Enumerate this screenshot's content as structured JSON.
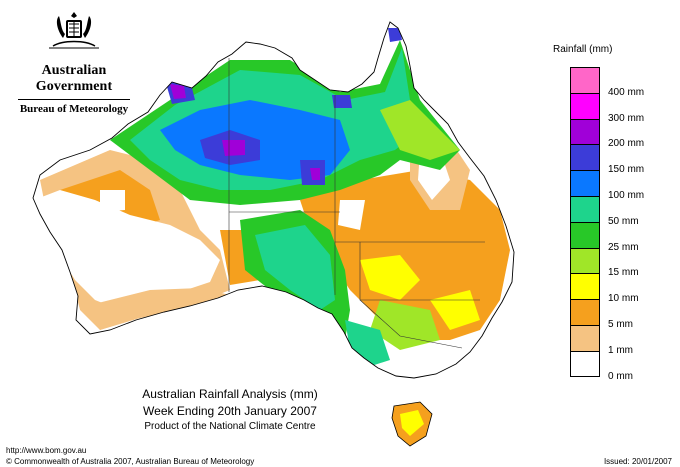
{
  "header": {
    "government": "Australian Government",
    "bureau": "Bureau of Meteorology",
    "crest_icon": "coat-of-arms-icon"
  },
  "legend": {
    "title": "Rainfall (mm)",
    "items": [
      {
        "label": "",
        "color": "#ff66c8"
      },
      {
        "label": "400 mm",
        "color": "#ff00ff"
      },
      {
        "label": "300 mm",
        "color": "#a000d8"
      },
      {
        "label": "200 mm",
        "color": "#3c3cd8"
      },
      {
        "label": "150 mm",
        "color": "#0a78ff"
      },
      {
        "label": "100 mm",
        "color": "#1ed48c"
      },
      {
        "label": "50 mm",
        "color": "#28c828"
      },
      {
        "label": "25 mm",
        "color": "#a0e628"
      },
      {
        "label": "15 mm",
        "color": "#ffff00"
      },
      {
        "label": "10 mm",
        "color": "#f5a01e"
      },
      {
        "label": "5 mm",
        "color": "#f5c382"
      },
      {
        "label": "1 mm",
        "color": "#ffffff"
      },
      {
        "label": "0 mm",
        "color": ""
      }
    ]
  },
  "caption": {
    "line1": "Australian Rainfall Analysis (mm)",
    "line2": "Week Ending 20th January 2007",
    "line3": "Product of the National Climate Centre"
  },
  "footer": {
    "url": "http://www.bom.gov.au",
    "copyright": "© Commonwealth of Australia 2007, Australian Bureau of Meteorology",
    "issued": "Issued: 20/01/2007"
  }
}
